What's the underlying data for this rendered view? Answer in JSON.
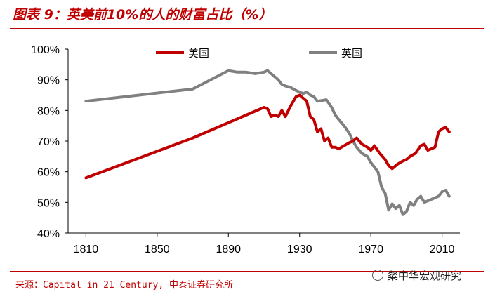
{
  "title": "图表 9：英美前10%的人的财富占比（%）",
  "source": "来源：Capital in 21 Century, 中泰证券研究所",
  "watermark": "粲中华宏观研究",
  "colors": {
    "us": "#c00000",
    "uk": "#808080",
    "accent": "#c00000"
  },
  "chart_data": {
    "type": "line",
    "xlim": [
      1800,
      2020
    ],
    "ylim": [
      40,
      100
    ],
    "x_ticks": [
      1810,
      1850,
      1890,
      1930,
      1970,
      2010
    ],
    "y_ticks": [
      40,
      50,
      60,
      70,
      80,
      90,
      100
    ],
    "y_tick_labels": [
      "40%",
      "50%",
      "60%",
      "70%",
      "80%",
      "90%",
      "100%"
    ],
    "legend_position": "top",
    "series": [
      {
        "name": "美国",
        "color": "#c00000",
        "x": [
          1810,
          1870,
          1910,
          1912,
          1914,
          1916,
          1918,
          1920,
          1922,
          1925,
          1928,
          1930,
          1932,
          1934,
          1936,
          1938,
          1940,
          1942,
          1944,
          1946,
          1948,
          1950,
          1952,
          1955,
          1958,
          1960,
          1962,
          1965,
          1968,
          1970,
          1972,
          1975,
          1978,
          1980,
          1982,
          1985,
          1988,
          1990,
          1992,
          1995,
          1998,
          2000,
          2002,
          2004,
          2006,
          2008,
          2010,
          2012,
          2014
        ],
        "y": [
          58,
          71,
          81,
          80.5,
          78,
          78.5,
          78,
          80,
          78,
          81.5,
          84.5,
          85,
          84,
          83,
          78,
          77,
          73,
          74,
          70,
          71,
          68,
          68,
          67.5,
          68.5,
          69.5,
          70,
          71,
          69,
          68,
          67,
          68.5,
          66,
          64,
          62,
          61,
          62.5,
          63.5,
          64,
          65,
          66,
          68.5,
          69,
          67,
          67.5,
          68,
          73,
          74,
          74.5,
          73
        ]
      },
      {
        "name": "英国",
        "color": "#808080",
        "x": [
          1810,
          1870,
          1890,
          1895,
          1900,
          1905,
          1910,
          1912,
          1914,
          1918,
          1920,
          1922,
          1925,
          1928,
          1930,
          1932,
          1934,
          1936,
          1938,
          1940,
          1945,
          1948,
          1950,
          1952,
          1955,
          1958,
          1960,
          1962,
          1965,
          1968,
          1970,
          1972,
          1974,
          1976,
          1978,
          1980,
          1982,
          1984,
          1986,
          1988,
          1990,
          1992,
          1994,
          1996,
          1998,
          2000,
          2002,
          2004,
          2006,
          2008,
          2010,
          2012,
          2014
        ],
        "y": [
          83,
          87,
          93,
          92.5,
          92.5,
          92,
          92.5,
          93,
          92,
          90,
          88.5,
          88,
          87.5,
          86.5,
          86,
          85.5,
          86,
          85,
          84.5,
          83,
          83.5,
          81,
          78.5,
          77,
          75,
          72.5,
          70,
          68,
          66,
          65,
          63,
          61.5,
          60,
          55,
          53,
          47.5,
          49.5,
          48,
          49,
          46,
          47,
          50,
          49,
          51,
          52,
          50,
          50.5,
          51,
          51.5,
          52,
          53.5,
          54,
          52
        ]
      }
    ]
  }
}
